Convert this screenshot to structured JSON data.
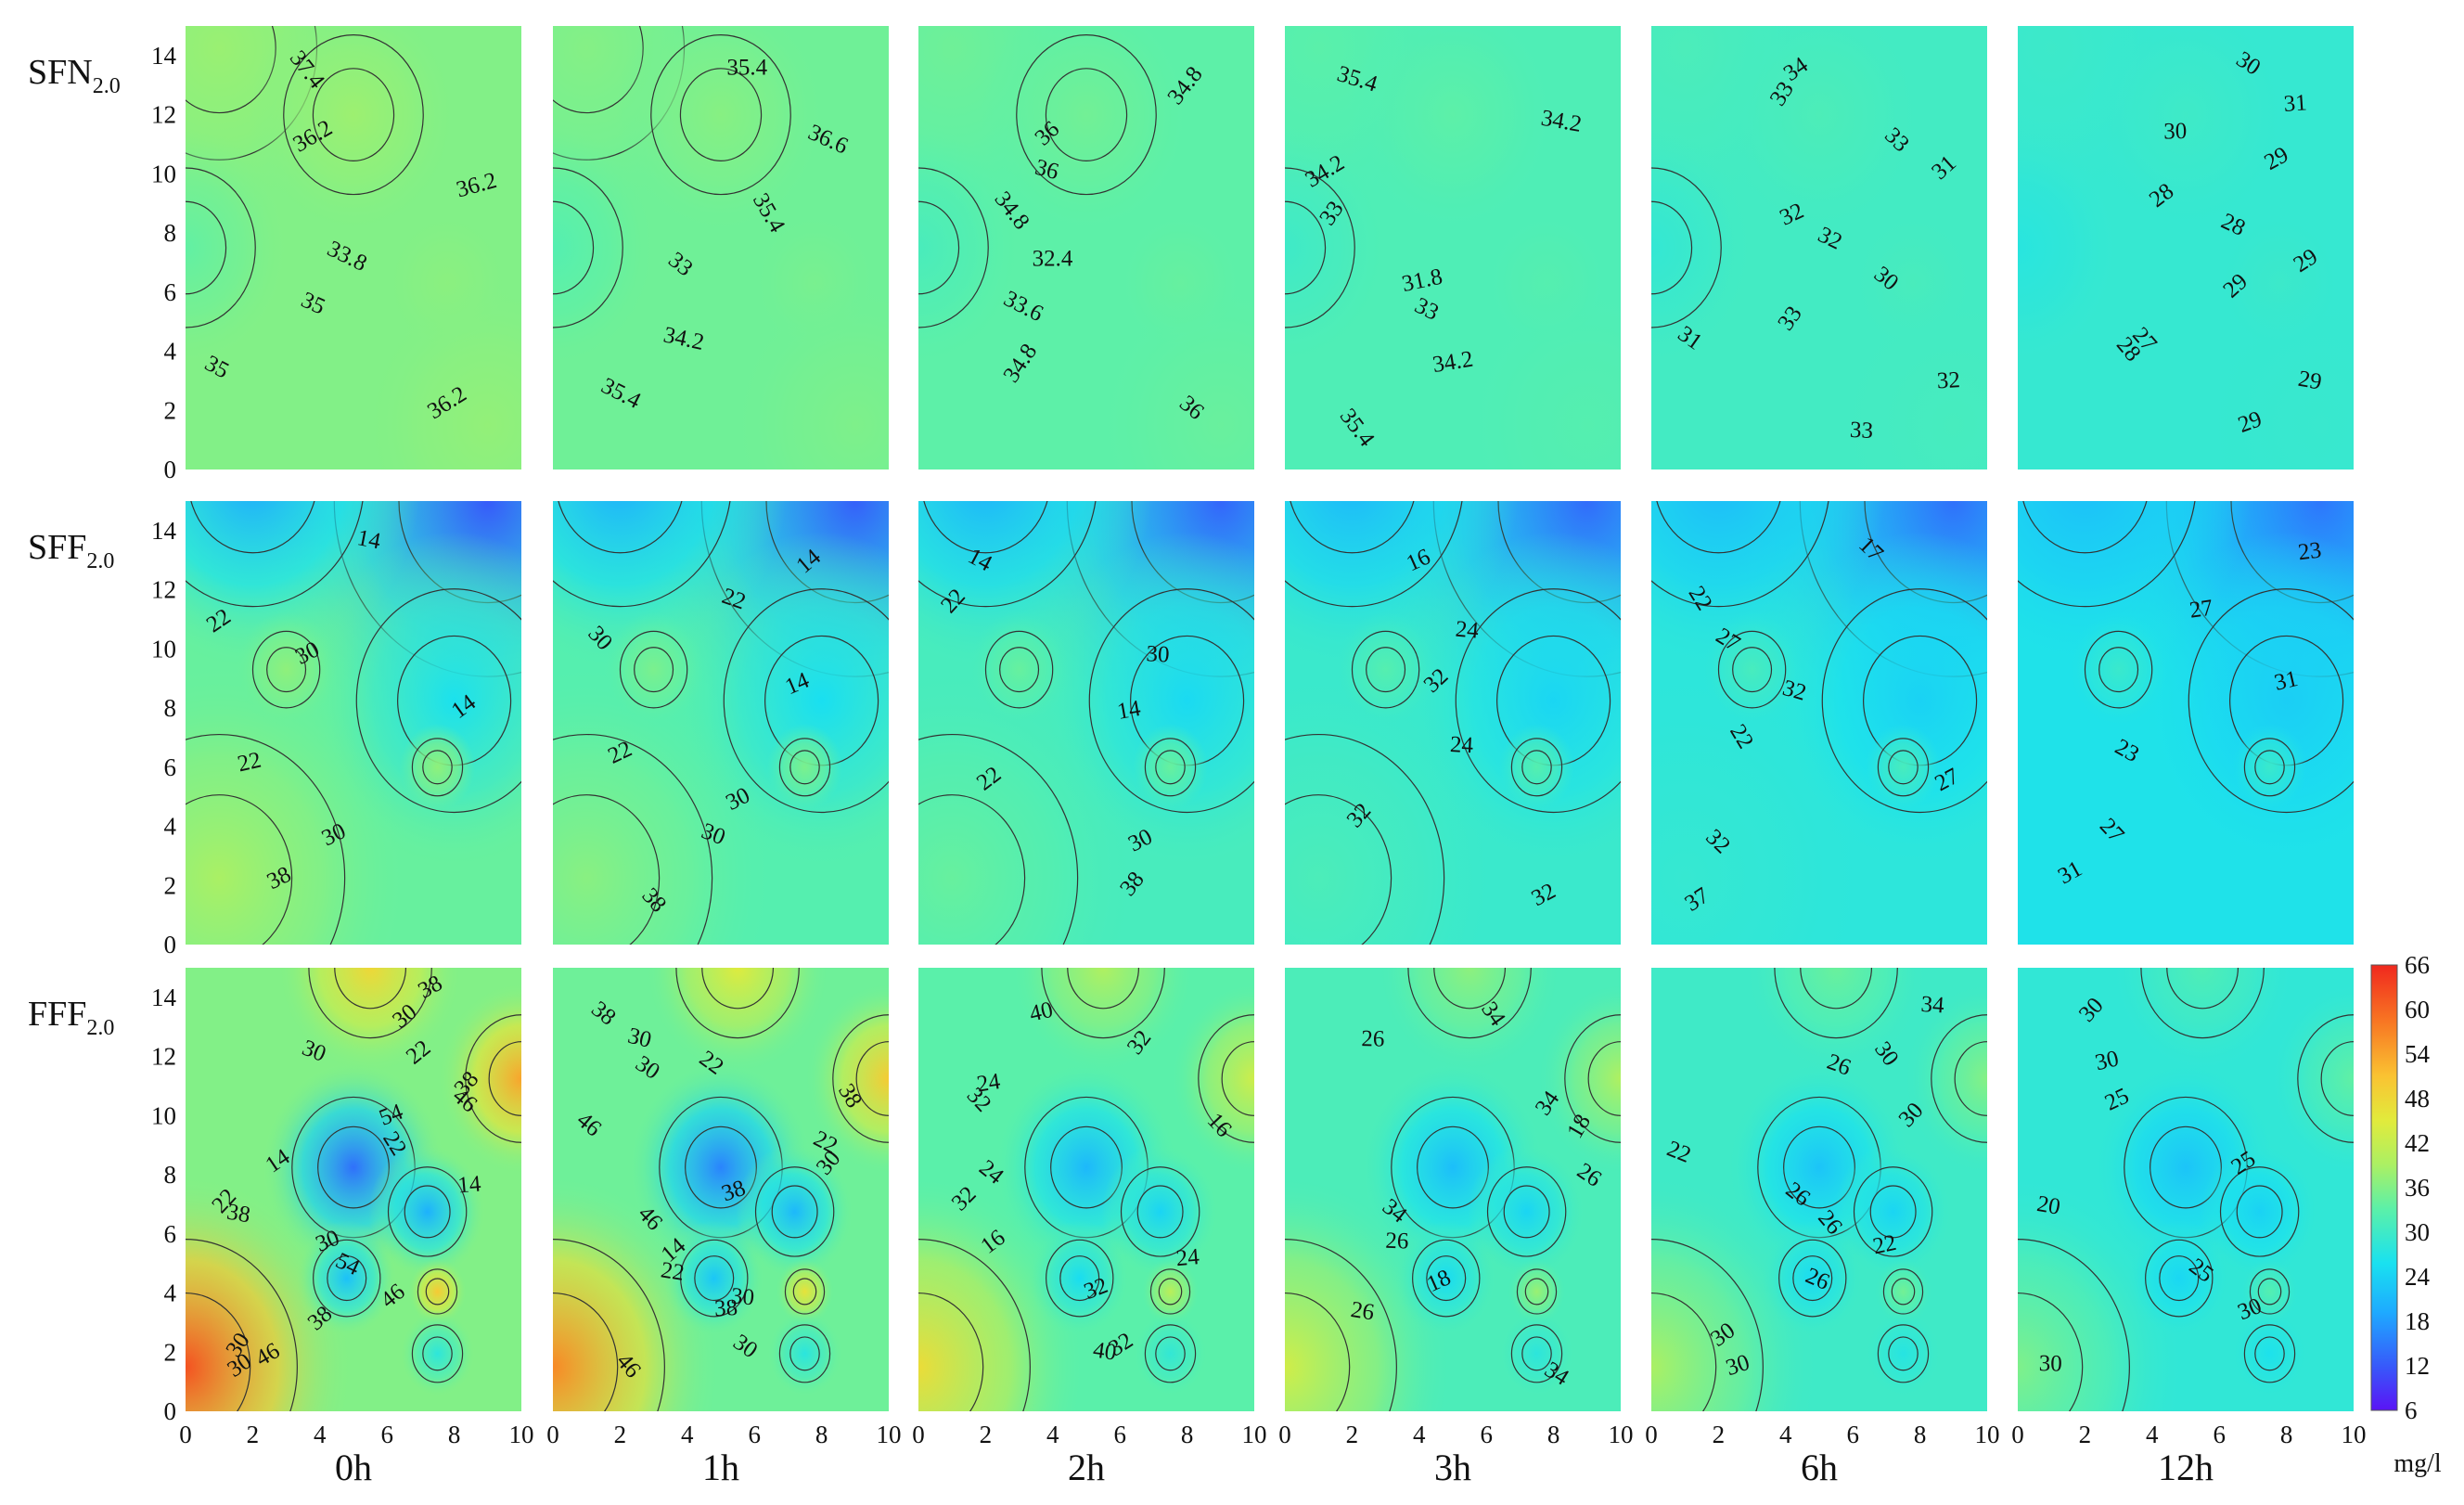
{
  "chart_data": {
    "type": "heatmap",
    "title": "",
    "columns": [
      "0h",
      "1h",
      "2h",
      "3h",
      "6h",
      "12h"
    ],
    "rows": [
      {
        "label": "SFN",
        "subscript": "2.0",
        "base": 35.5,
        "contours": [
          [
            "37.4",
            "36.2",
            "36.2",
            "33.8",
            "35",
            "35",
            "36.2"
          ],
          [
            "35.4",
            "36.6",
            "35.4",
            "33",
            "34.2",
            "35.4"
          ],
          [
            "34.8",
            "36",
            "36",
            "34.8",
            "32.4",
            "33.6",
            "34.8",
            "36"
          ],
          [
            "35.4",
            "34.2",
            "34.2",
            "33",
            "31.8",
            "33",
            "34.2",
            "35.4"
          ],
          [
            "34",
            "33",
            "33",
            "31",
            "32",
            "32",
            "30",
            "33",
            "31",
            "32",
            "33"
          ],
          [
            "30",
            "31",
            "30",
            "29",
            "28",
            "28",
            "29",
            "29",
            "27",
            "28",
            "29",
            "29"
          ]
        ]
      },
      {
        "label": "SFF",
        "subscript": "2.0",
        "base": 34,
        "contours": [
          [
            "14",
            "22",
            "30",
            "14",
            "22",
            "30",
            "38"
          ],
          [
            "14",
            "22",
            "30",
            "14",
            "22",
            "30",
            "30",
            "38"
          ],
          [
            "14",
            "22",
            "30",
            "14",
            "22",
            "30",
            "38"
          ],
          [
            "16",
            "24",
            "32",
            "24",
            "32",
            "32"
          ],
          [
            "17",
            "22",
            "27",
            "32",
            "22",
            "27",
            "32",
            "37"
          ],
          [
            "23",
            "27",
            "31",
            "23",
            "27",
            "31"
          ]
        ]
      },
      {
        "label": "FFF",
        "subscript": "2.0",
        "base": 36,
        "contours": [
          [
            "38",
            "30",
            "22",
            "30",
            "38",
            "46",
            "54",
            "22",
            "14",
            "14",
            "22",
            "38",
            "30",
            "54",
            "46",
            "38",
            "30",
            "46",
            "30"
          ],
          [
            "38",
            "30",
            "22",
            "30",
            "38",
            "46",
            "22",
            "30",
            "38",
            "46",
            "14",
            "22",
            "30",
            "38",
            "30",
            "46"
          ],
          [
            "40",
            "32",
            "24",
            "32",
            "16",
            "24",
            "32",
            "16",
            "24",
            "32",
            "32",
            "40"
          ],
          [
            "34",
            "26",
            "34",
            "18",
            "26",
            "34",
            "26",
            "18",
            "26",
            "34"
          ],
          [
            "34",
            "30",
            "26",
            "30",
            "22",
            "26",
            "26",
            "22",
            "26",
            "30",
            "30"
          ],
          [
            "30",
            "30",
            "25",
            "25",
            "20",
            "25",
            "30",
            "30"
          ]
        ]
      }
    ],
    "x_ticks": [
      "0",
      "2",
      "4",
      "6",
      "8",
      "10"
    ],
    "y_ticks": [
      "0",
      "2",
      "4",
      "6",
      "8",
      "10",
      "12",
      "14"
    ],
    "xlim": [
      0,
      10
    ],
    "ylim": [
      0,
      15
    ],
    "colorbar": {
      "ticks": [
        "66",
        "60",
        "54",
        "48",
        "42",
        "36",
        "30",
        "24",
        "18",
        "12",
        "6"
      ],
      "unit": "mg/l",
      "range": [
        6,
        66
      ]
    }
  }
}
